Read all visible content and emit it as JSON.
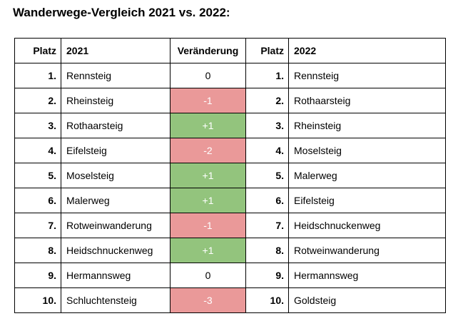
{
  "title": "Wanderwege-Vergleich 2021 vs. 2022:",
  "headers": {
    "rank_left": "Platz",
    "year_left": "2021",
    "change": "Veränderung",
    "rank_right": "Platz",
    "year_right": "2022"
  },
  "colors": {
    "positive": "#93c47d",
    "negative": "#ea9999"
  },
  "rows": [
    {
      "rank_left": "1.",
      "name_2021": "Rennsteig",
      "change": "0",
      "change_type": "neutral",
      "rank_right": "1.",
      "name_2022": "Rennsteig"
    },
    {
      "rank_left": "2.",
      "name_2021": "Rheinsteig",
      "change": "-1",
      "change_type": "neg",
      "rank_right": "2.",
      "name_2022": "Rothaarsteig"
    },
    {
      "rank_left": "3.",
      "name_2021": "Rothaarsteig",
      "change": "+1",
      "change_type": "pos",
      "rank_right": "3.",
      "name_2022": "Rheinsteig"
    },
    {
      "rank_left": "4.",
      "name_2021": "Eifelsteig",
      "change": "-2",
      "change_type": "neg",
      "rank_right": "4.",
      "name_2022": "Moselsteig"
    },
    {
      "rank_left": "5.",
      "name_2021": "Moselsteig",
      "change": "+1",
      "change_type": "pos",
      "rank_right": "5.",
      "name_2022": "Malerweg"
    },
    {
      "rank_left": "6.",
      "name_2021": "Malerweg",
      "change": "+1",
      "change_type": "pos",
      "rank_right": "6.",
      "name_2022": "Eifelsteig"
    },
    {
      "rank_left": "7.",
      "name_2021": "Rotweinwanderung",
      "change": "-1",
      "change_type": "neg",
      "rank_right": "7.",
      "name_2022": "Heidschnuckenweg"
    },
    {
      "rank_left": "8.",
      "name_2021": "Heidschnuckenweg",
      "change": "+1",
      "change_type": "pos",
      "rank_right": "8.",
      "name_2022": "Rotweinwanderung"
    },
    {
      "rank_left": "9.",
      "name_2021": "Hermannsweg",
      "change": "0",
      "change_type": "neutral",
      "rank_right": "9.",
      "name_2022": "Hermannsweg"
    },
    {
      "rank_left": "10.",
      "name_2021": "Schluchtensteig",
      "change": "-3",
      "change_type": "neg",
      "rank_right": "10.",
      "name_2022": "Goldsteig"
    }
  ]
}
